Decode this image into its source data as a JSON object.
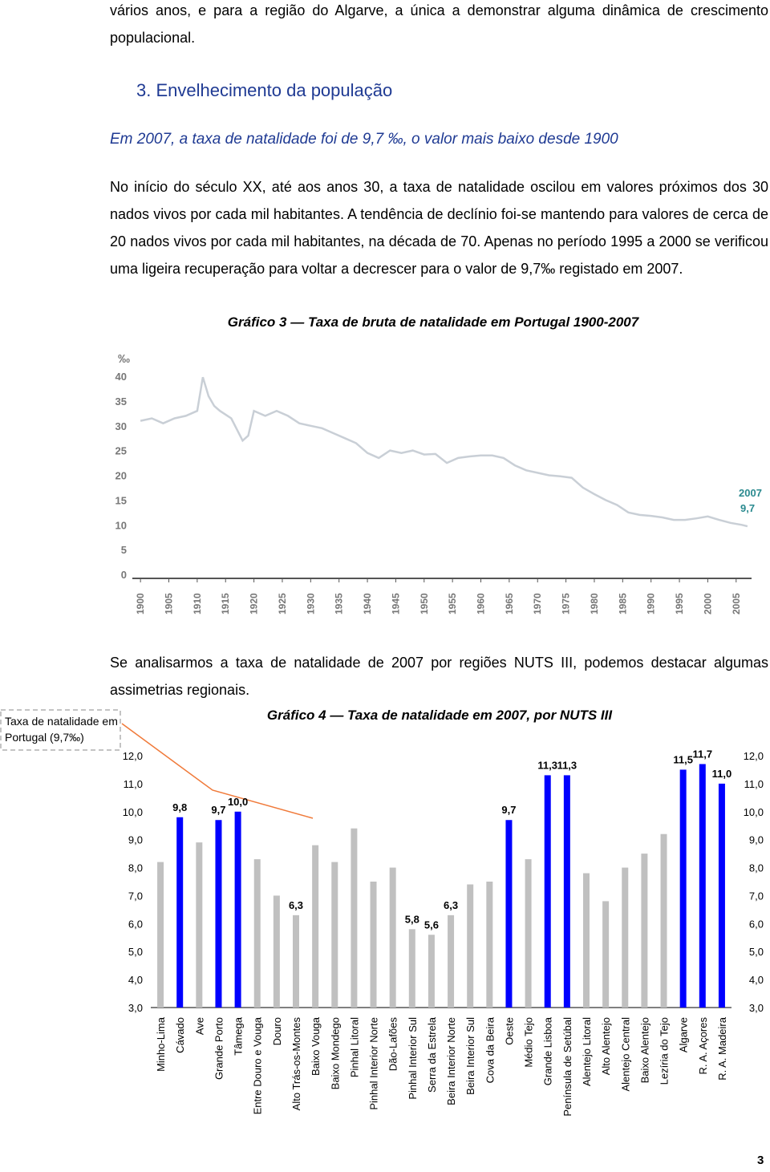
{
  "text": {
    "intro": "vários anos, e para a região do Algarve, a única a demonstrar alguma dinâmica de crescimento populacional.",
    "heading": "3. Envelhecimento da população",
    "subtitle": "Em 2007, a taxa de natalidade foi de 9,7 ‰, o valor mais baixo desde 1900",
    "paragraph1": "No início do século XX, até aos anos 30, a taxa de natalidade oscilou em valores próximos dos 30 nados vivos por cada mil habitantes. A tendência de declínio foi-se mantendo para valores de cerca de 20 nados vivos por cada mil habitantes, na década de 70. Apenas no período 1995 a 2000 se verificou uma ligeira recuperação para voltar a decrescer para o valor de 9,7‰ registado em 2007.",
    "paragraph2": "Se analisarmos a taxa de natalidade de 2007 por regiões NUTS III, podemos destacar algumas assimetrias regionais.",
    "page_number": "3"
  },
  "chart_data": [
    {
      "type": "line",
      "title": "Gráfico 3 — Taxa de bruta de natalidade em Portugal 1900-2007",
      "y_unit": "‰",
      "annotations": [
        "2007",
        "9,7"
      ],
      "color": "#c9cfd6",
      "x": [
        1900,
        1902,
        1904,
        1906,
        1908,
        1910,
        1911,
        1912,
        1913,
        1914,
        1916,
        1918,
        1919,
        1920,
        1922,
        1924,
        1926,
        1928,
        1930,
        1932,
        1934,
        1936,
        1938,
        1940,
        1942,
        1944,
        1946,
        1948,
        1950,
        1952,
        1954,
        1956,
        1958,
        1960,
        1962,
        1964,
        1966,
        1968,
        1970,
        1972,
        1974,
        1976,
        1978,
        1980,
        1982,
        1984,
        1986,
        1988,
        1990,
        1992,
        1994,
        1996,
        1998,
        2000,
        2002,
        2004,
        2006,
        2007
      ],
      "values": [
        31,
        31.5,
        30.5,
        31.5,
        32,
        33,
        39.8,
        36,
        34,
        33,
        31.5,
        27,
        28,
        33,
        32,
        33,
        32,
        30.5,
        30,
        29.5,
        28.5,
        27.5,
        26.5,
        24.5,
        23.5,
        25,
        24.5,
        25,
        24.2,
        24.3,
        22.5,
        23.5,
        23.8,
        24,
        24,
        23.5,
        22,
        21,
        20.5,
        20,
        19.8,
        19.5,
        17.5,
        16.2,
        15,
        14,
        12.5,
        12,
        11.8,
        11.5,
        11,
        11,
        11.3,
        11.7,
        11,
        10.4,
        10,
        9.7
      ],
      "xlim": [
        1898,
        2008
      ],
      "xticks": [
        1900,
        1905,
        1910,
        1915,
        1920,
        1925,
        1930,
        1935,
        1940,
        1945,
        1950,
        1955,
        1960,
        1965,
        1970,
        1975,
        1980,
        1985,
        1990,
        1995,
        2000,
        2005
      ],
      "ylim": [
        0,
        40
      ],
      "yticks": [
        0,
        5,
        10,
        15,
        20,
        25,
        30,
        35,
        40
      ],
      "grid": false
    },
    {
      "type": "bar",
      "title": "Gráfico 4 — Taxa de natalidade em 2007, por NUTS III",
      "annotation": "Taxa de natalidade em Portugal (9,7‰)",
      "categories": [
        "Minho-Lima",
        "Cávado",
        "Ave",
        "Grande Porto",
        "Tâmega",
        "Entre Douro e Vouga",
        "Douro",
        "Alto Trás-os-Montes",
        "Baixo Vouga",
        "Baixo Mondego",
        "Pinhal Litoral",
        "Pinhal Interior Norte",
        "Dão-Lafões",
        "Pinhal Interior Sul",
        "Serra da Estrela",
        "Beira Interior Norte",
        "Beira Interior Sul",
        "Cova da Beira",
        "Oeste",
        "Médio Tejo",
        "Grande Lisboa",
        "Península de Setúbal",
        "Alentejo Litoral",
        "Alto Alentejo",
        "Alentejo Central",
        "Baixo Alentejo",
        "Lezíria do Tejo",
        "Algarve",
        "R. A. Açores",
        "R. A. Madeira"
      ],
      "values": [
        8.2,
        9.8,
        8.9,
        9.7,
        10.0,
        8.3,
        7.0,
        6.3,
        8.8,
        8.2,
        9.4,
        7.5,
        8.0,
        5.8,
        5.6,
        6.3,
        7.4,
        7.5,
        9.7,
        8.3,
        11.3,
        11.3,
        7.8,
        6.8,
        8.0,
        8.5,
        9.2,
        11.5,
        11.7,
        11.0
      ],
      "value_labels": [
        null,
        "9,8",
        null,
        "9,7",
        "10,0",
        null,
        null,
        "6,3",
        null,
        null,
        null,
        null,
        null,
        "5,8",
        "5,6",
        "6,3",
        null,
        null,
        "9,7",
        null,
        "11,3",
        "11,3",
        null,
        null,
        null,
        null,
        null,
        "11,5",
        "11,7",
        "11,0"
      ],
      "colors": [
        "#c0c0c0",
        "#0000ff",
        "#c0c0c0",
        "#0000ff",
        "#0000ff",
        "#c0c0c0",
        "#c0c0c0",
        "#c0c0c0",
        "#c0c0c0",
        "#c0c0c0",
        "#c0c0c0",
        "#c0c0c0",
        "#c0c0c0",
        "#c0c0c0",
        "#c0c0c0",
        "#c0c0c0",
        "#c0c0c0",
        "#c0c0c0",
        "#0000ff",
        "#c0c0c0",
        "#0000ff",
        "#0000ff",
        "#c0c0c0",
        "#c0c0c0",
        "#c0c0c0",
        "#c0c0c0",
        "#c0c0c0",
        "#0000ff",
        "#0000ff",
        "#0000ff"
      ],
      "ylim": [
        3,
        12
      ],
      "yticks": [
        {
          "value": 3,
          "label": "3,0"
        },
        {
          "value": 4,
          "label": "4,0"
        },
        {
          "value": 5,
          "label": "5,0"
        },
        {
          "value": 6,
          "label": "6,0"
        },
        {
          "value": 7,
          "label": "7,0"
        },
        {
          "value": 8,
          "label": "8,0"
        },
        {
          "value": 9,
          "label": "9,0"
        },
        {
          "value": 10,
          "label": "10,0"
        },
        {
          "value": 11,
          "label": "11,0"
        },
        {
          "value": 12,
          "label": "12,0"
        }
      ],
      "grid": false
    }
  ]
}
